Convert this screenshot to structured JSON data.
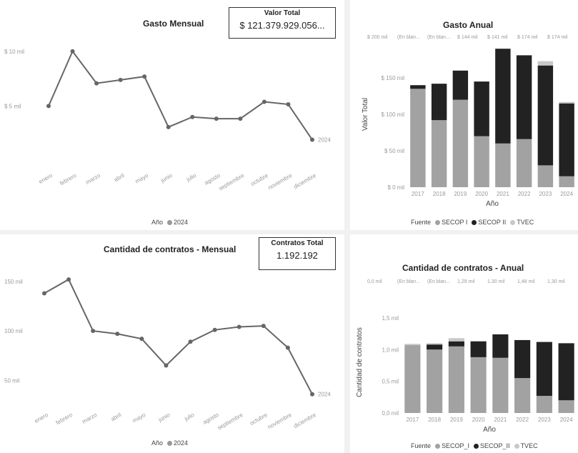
{
  "tl": {
    "title": "Gasto Mensual",
    "kpi_label": "Valor Total",
    "kpi_value": "$ 121.379.929.056...",
    "legend_title": "Año",
    "legend_item": "2024"
  },
  "tr": {
    "title": "Gasto Anual",
    "legend_title": "Fuente",
    "legend": [
      "SECOP I",
      "SECOP II",
      "TVEC"
    ],
    "top_labels": [
      "$ 200 mil",
      "(En blan...",
      "(En blan...",
      "$ 144 mil",
      "$ 141 mil",
      "$ 174 mil",
      "$ 174 mil"
    ]
  },
  "bl": {
    "title": "Cantidad de contratos - Mensual",
    "kpi_label": "Contratos Total",
    "kpi_value": "1.192.192",
    "legend_title": "Año",
    "legend_item": "2024"
  },
  "br": {
    "title": "Cantidad de contratos - Anual",
    "legend_title": "Fuente",
    "legend": [
      "SECOP_I",
      "SECOP_II",
      "TVEC"
    ],
    "top_labels": [
      "0,0 mil",
      "(En blan...",
      "(En blan...",
      "1,29 mil",
      "1,30 mil",
      "1,48 mil",
      "1,30 mil"
    ]
  },
  "colors": {
    "line": "#666666",
    "secop1": "#a2a2a2",
    "secop2": "#222222",
    "tvec": "#c8c8c8",
    "bg": "#f1f1f1"
  },
  "chart_data": [
    {
      "type": "line",
      "title": "Gasto Mensual",
      "series": [
        {
          "name": "2024",
          "values": [
            6.5,
            13,
            9.2,
            9.6,
            10,
            4,
            5.2,
            5,
            5,
            7,
            6.7,
            2.5
          ]
        }
      ],
      "categories": [
        "enero",
        "febrero",
        "marzo",
        "abril",
        "mayo",
        "junio",
        "julio",
        "agosto",
        "septiembre",
        "octubre",
        "noviembre",
        "diciembre"
      ],
      "yticks": [
        "$ 10 mil",
        "$ 5 mil"
      ],
      "ytick_values": [
        13,
        6.5
      ],
      "end_label": "2024",
      "ylim": [
        0,
        14
      ]
    },
    {
      "type": "bar",
      "stacked": true,
      "title": "Gasto Anual",
      "xlabel": "Año",
      "ylabel": "Valor Total",
      "categories": [
        "2017",
        "2018",
        "2019",
        "2020",
        "2021",
        "2022",
        "2023",
        "2024"
      ],
      "series": [
        {
          "name": "SECOP I",
          "values": [
            135,
            92,
            120,
            70,
            60,
            66,
            30,
            15
          ]
        },
        {
          "name": "SECOP II",
          "values": [
            5,
            50,
            40,
            75,
            130,
            115,
            137,
            100
          ]
        },
        {
          "name": "TVEC",
          "values": [
            0,
            0,
            0,
            0,
            0,
            0,
            6,
            2
          ]
        }
      ],
      "yticks": [
        "$ 0 mil",
        "$ 50 mil",
        "$ 100 mil",
        "$ 150 mil"
      ],
      "ytick_values": [
        0,
        50,
        100,
        150
      ],
      "ylim": [
        0,
        200
      ]
    },
    {
      "type": "line",
      "title": "Cantidad de contratos - Mensual",
      "series": [
        {
          "name": "2024",
          "values": [
            138,
            152,
            100,
            97,
            92,
            65,
            89,
            101,
            104,
            105,
            83,
            36
          ]
        }
      ],
      "categories": [
        "enero",
        "febrero",
        "marzo",
        "abril",
        "mayo",
        "junio",
        "julio",
        "agosto",
        "septiembre",
        "octubre",
        "noviembre",
        "diciembre"
      ],
      "yticks": [
        "150 mil",
        "100 mil",
        "50 mil"
      ],
      "ytick_values": [
        150,
        100,
        50
      ],
      "end_label": "2024",
      "ylim": [
        30,
        160
      ]
    },
    {
      "type": "bar",
      "stacked": true,
      "title": "Cantidad de contratos - Anual",
      "xlabel": "Año",
      "ylabel": "Cantidad de contratos",
      "categories": [
        "2017",
        "2018",
        "2019",
        "2020",
        "2021",
        "2022",
        "2023",
        "2024"
      ],
      "series": [
        {
          "name": "SECOP_I",
          "values": [
            1.07,
            1.0,
            1.05,
            0.88,
            0.87,
            0.55,
            0.27,
            0.2
          ]
        },
        {
          "name": "SECOP_II",
          "values": [
            0,
            0.08,
            0.08,
            0.25,
            0.37,
            0.6,
            0.85,
            0.9
          ]
        },
        {
          "name": "TVEC",
          "values": [
            0.02,
            0.02,
            0.05,
            0,
            0,
            0,
            0,
            0
          ]
        }
      ],
      "yticks": [
        "0,0 mil",
        "0,5 mil",
        "1,0 mil",
        "1,5 mil"
      ],
      "ytick_values": [
        0,
        0.5,
        1.0,
        1.5
      ],
      "ylim": [
        0,
        1.6
      ]
    }
  ]
}
